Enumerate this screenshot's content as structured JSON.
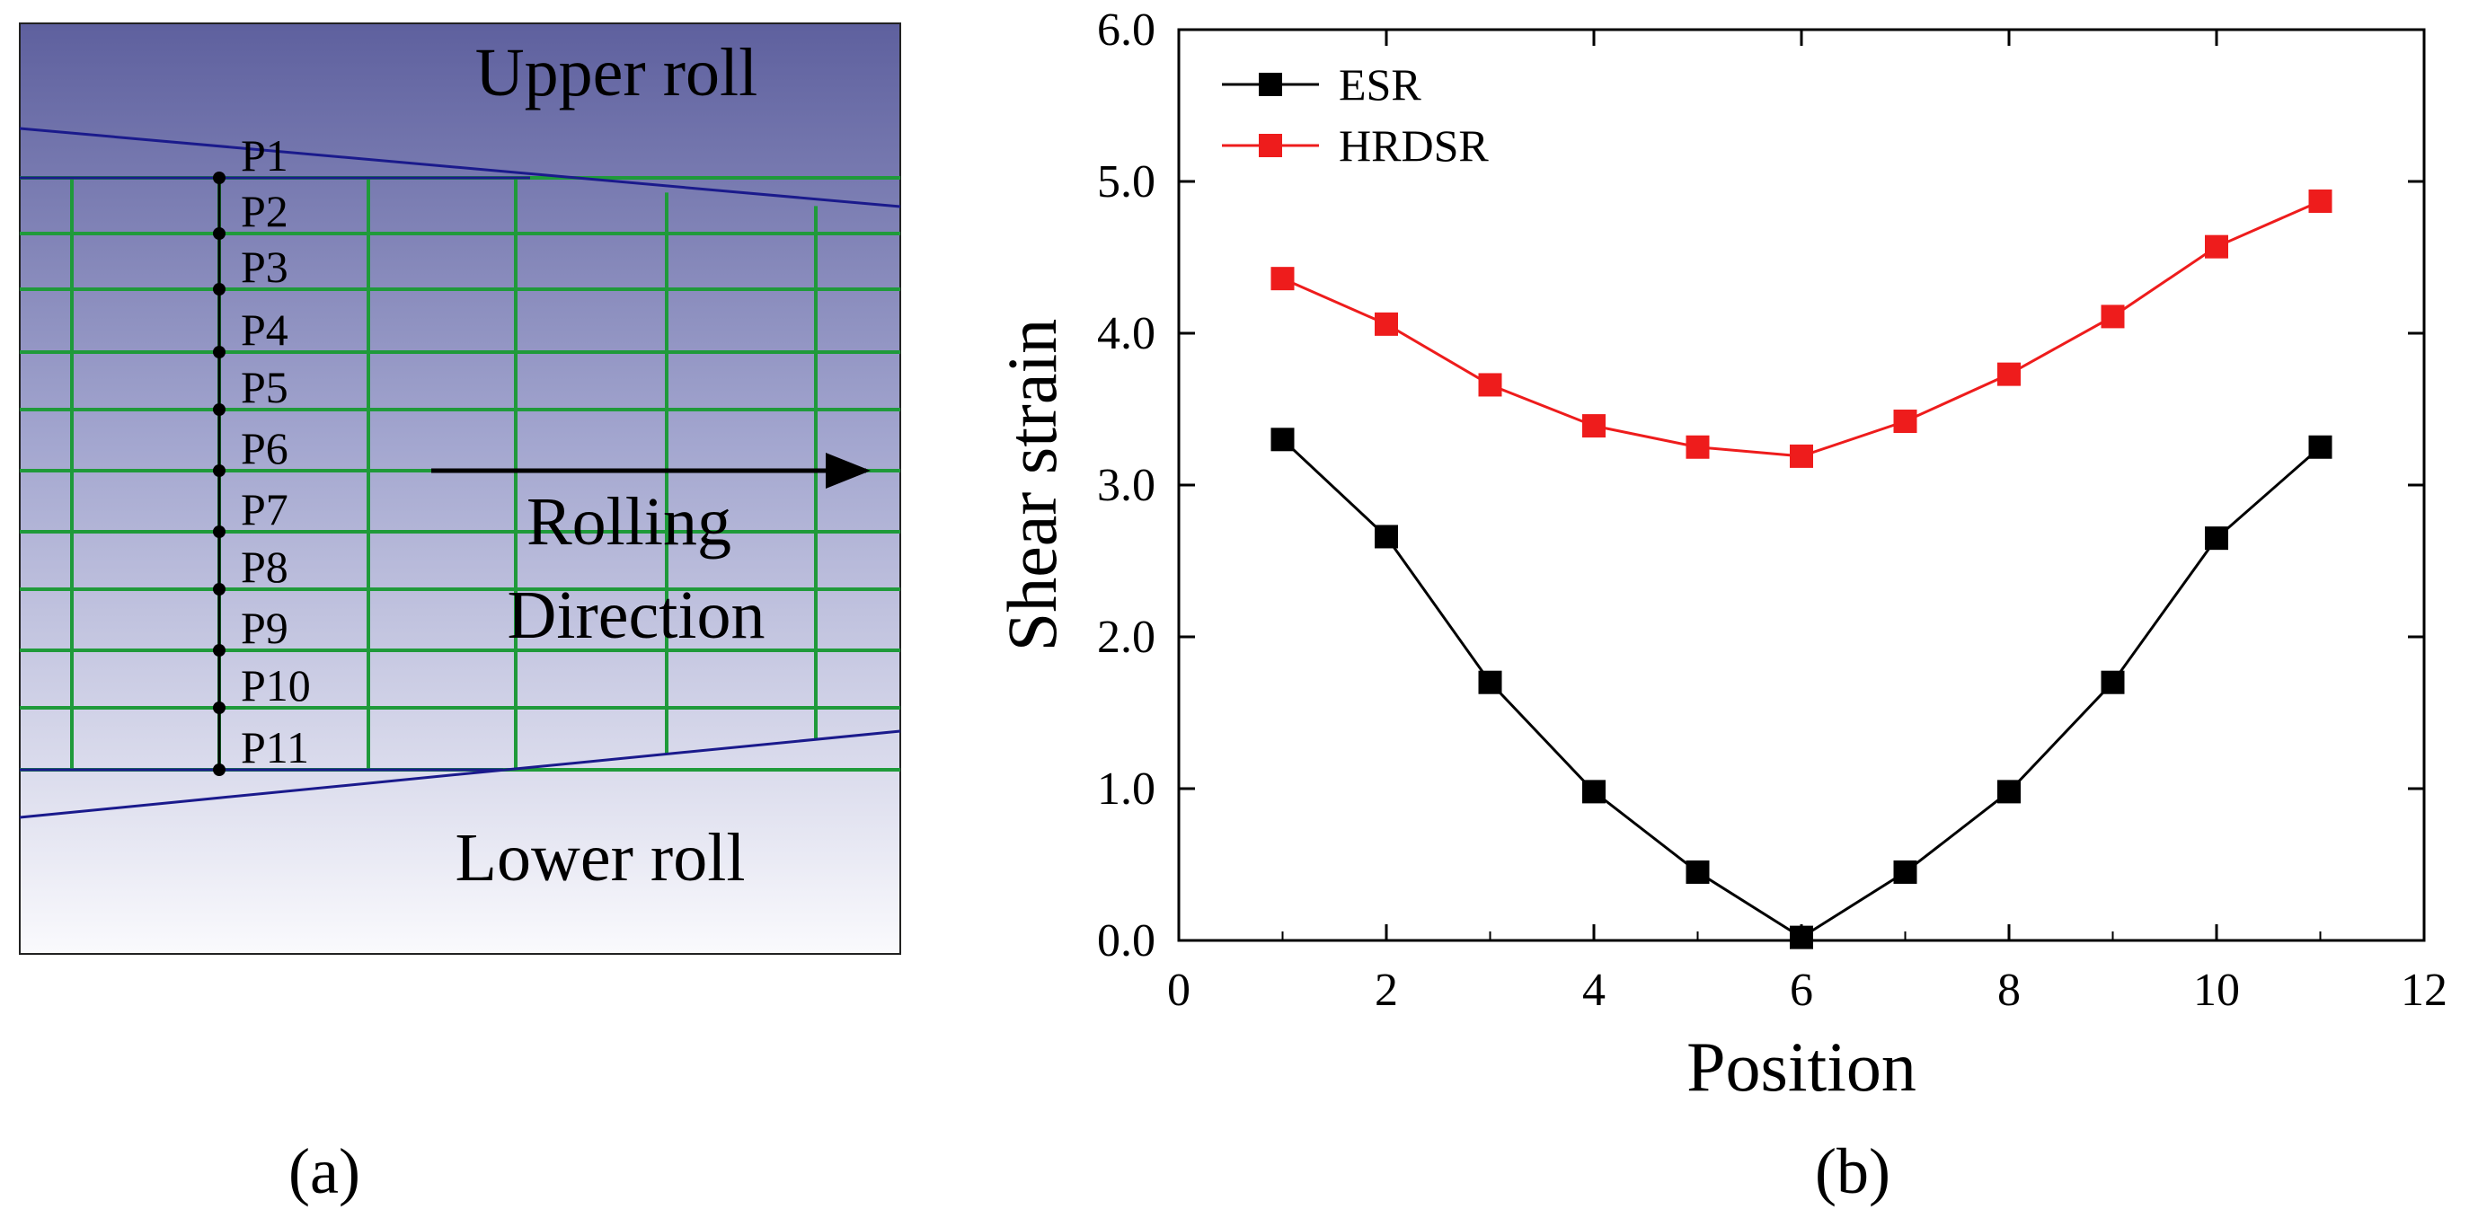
{
  "panel_a": {
    "upper_roll_label": "Upper roll",
    "lower_roll_label": "Lower roll",
    "direction_line1": "Rolling",
    "direction_line2": "Direction",
    "points": [
      "P1",
      "P2",
      "P3",
      "P4",
      "P5",
      "P6",
      "P7",
      "P8",
      "P9",
      "P10",
      "P11"
    ],
    "caption": "(a)",
    "colors": {
      "grid": "#1f9a3a",
      "roll_line": "#1a1a8c",
      "bg_top": "#5e609e",
      "bg_bottom": "#fafafd"
    }
  },
  "panel_b": {
    "caption": "(b)"
  },
  "chart_data": {
    "type": "line",
    "xlabel": "Position",
    "ylabel": "Shear strain",
    "xlim": [
      0,
      12
    ],
    "ylim": [
      0,
      6
    ],
    "x_ticks": [
      0,
      2,
      4,
      6,
      8,
      10,
      12
    ],
    "y_ticks": [
      0,
      1,
      2,
      3,
      4,
      5,
      6
    ],
    "x_tick_labels": [
      "0",
      "2",
      "4",
      "6",
      "8",
      "10",
      "12"
    ],
    "y_tick_labels": [
      "0.0",
      "1.0",
      "2.0",
      "3.0",
      "4.0",
      "5.0",
      "6.0"
    ],
    "legend_position": "top-left",
    "x": [
      1,
      2,
      3,
      4,
      5,
      6,
      7,
      8,
      9,
      10,
      11
    ],
    "series": [
      {
        "name": "ESR",
        "color": "#000000",
        "values": [
          3.3,
          2.66,
          1.7,
          0.98,
          0.45,
          0.02,
          0.45,
          0.98,
          1.7,
          2.65,
          3.25
        ]
      },
      {
        "name": "HRDSR",
        "color": "#ee1c1c",
        "values": [
          4.36,
          4.06,
          3.66,
          3.39,
          3.25,
          3.19,
          3.42,
          3.73,
          4.11,
          4.57,
          4.87
        ]
      }
    ]
  }
}
